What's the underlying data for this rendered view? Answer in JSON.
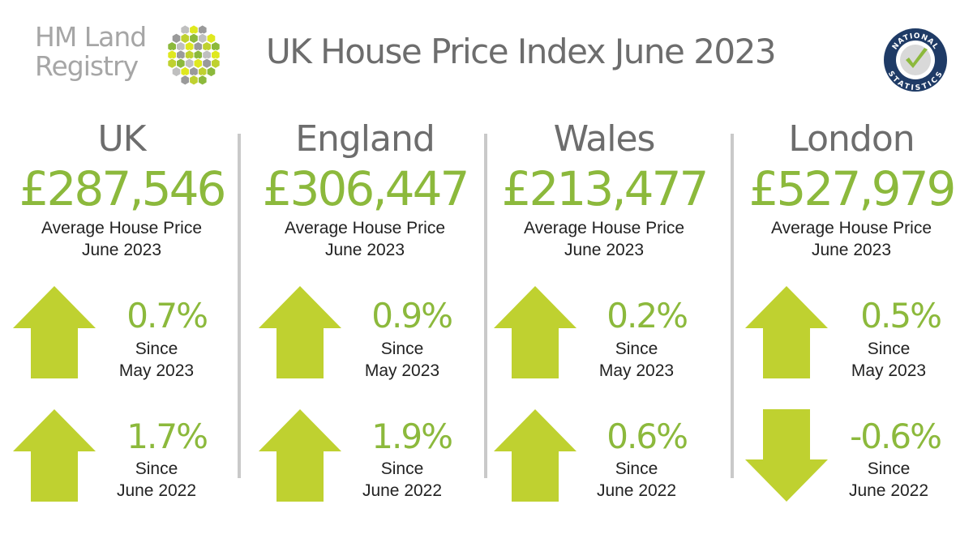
{
  "logo": {
    "line1": "HM Land",
    "line2": "Registry"
  },
  "title": "UK House Price Index June 2023",
  "badge": {
    "top_text": "NATIONAL",
    "bottom_text": "STATISTICS"
  },
  "colors": {
    "accent": "#8cb93c",
    "arrow": "#bfd130",
    "text_grey": "#6d6d6d"
  },
  "regions": [
    {
      "name": "UK",
      "price": "£287,546",
      "caption1": "Average House Price",
      "caption2": "June 2023",
      "monthly": {
        "direction": "up",
        "value": "0.7%",
        "since1": "Since",
        "since2": "May 2023"
      },
      "annual": {
        "direction": "up",
        "value": "1.7%",
        "since1": "Since",
        "since2": "June 2022"
      }
    },
    {
      "name": "England",
      "price": "£306,447",
      "caption1": "Average House Price",
      "caption2": "June 2023",
      "monthly": {
        "direction": "up",
        "value": "0.9%",
        "since1": "Since",
        "since2": "May 2023"
      },
      "annual": {
        "direction": "up",
        "value": "1.9%",
        "since1": "Since",
        "since2": "June 2022"
      }
    },
    {
      "name": "Wales",
      "price": "£213,477",
      "caption1": "Average House Price",
      "caption2": "June 2023",
      "monthly": {
        "direction": "up",
        "value": "0.2%",
        "since1": "Since",
        "since2": "May 2023"
      },
      "annual": {
        "direction": "up",
        "value": "0.6%",
        "since1": "Since",
        "since2": "June 2022"
      }
    },
    {
      "name": "London",
      "price": "£527,979",
      "caption1": "Average House Price",
      "caption2": "June 2023",
      "monthly": {
        "direction": "up",
        "value": "0.5%",
        "since1": "Since",
        "since2": "May 2023"
      },
      "annual": {
        "direction": "down",
        "value": "-0.6%",
        "since1": "Since",
        "since2": "June 2022"
      }
    }
  ]
}
